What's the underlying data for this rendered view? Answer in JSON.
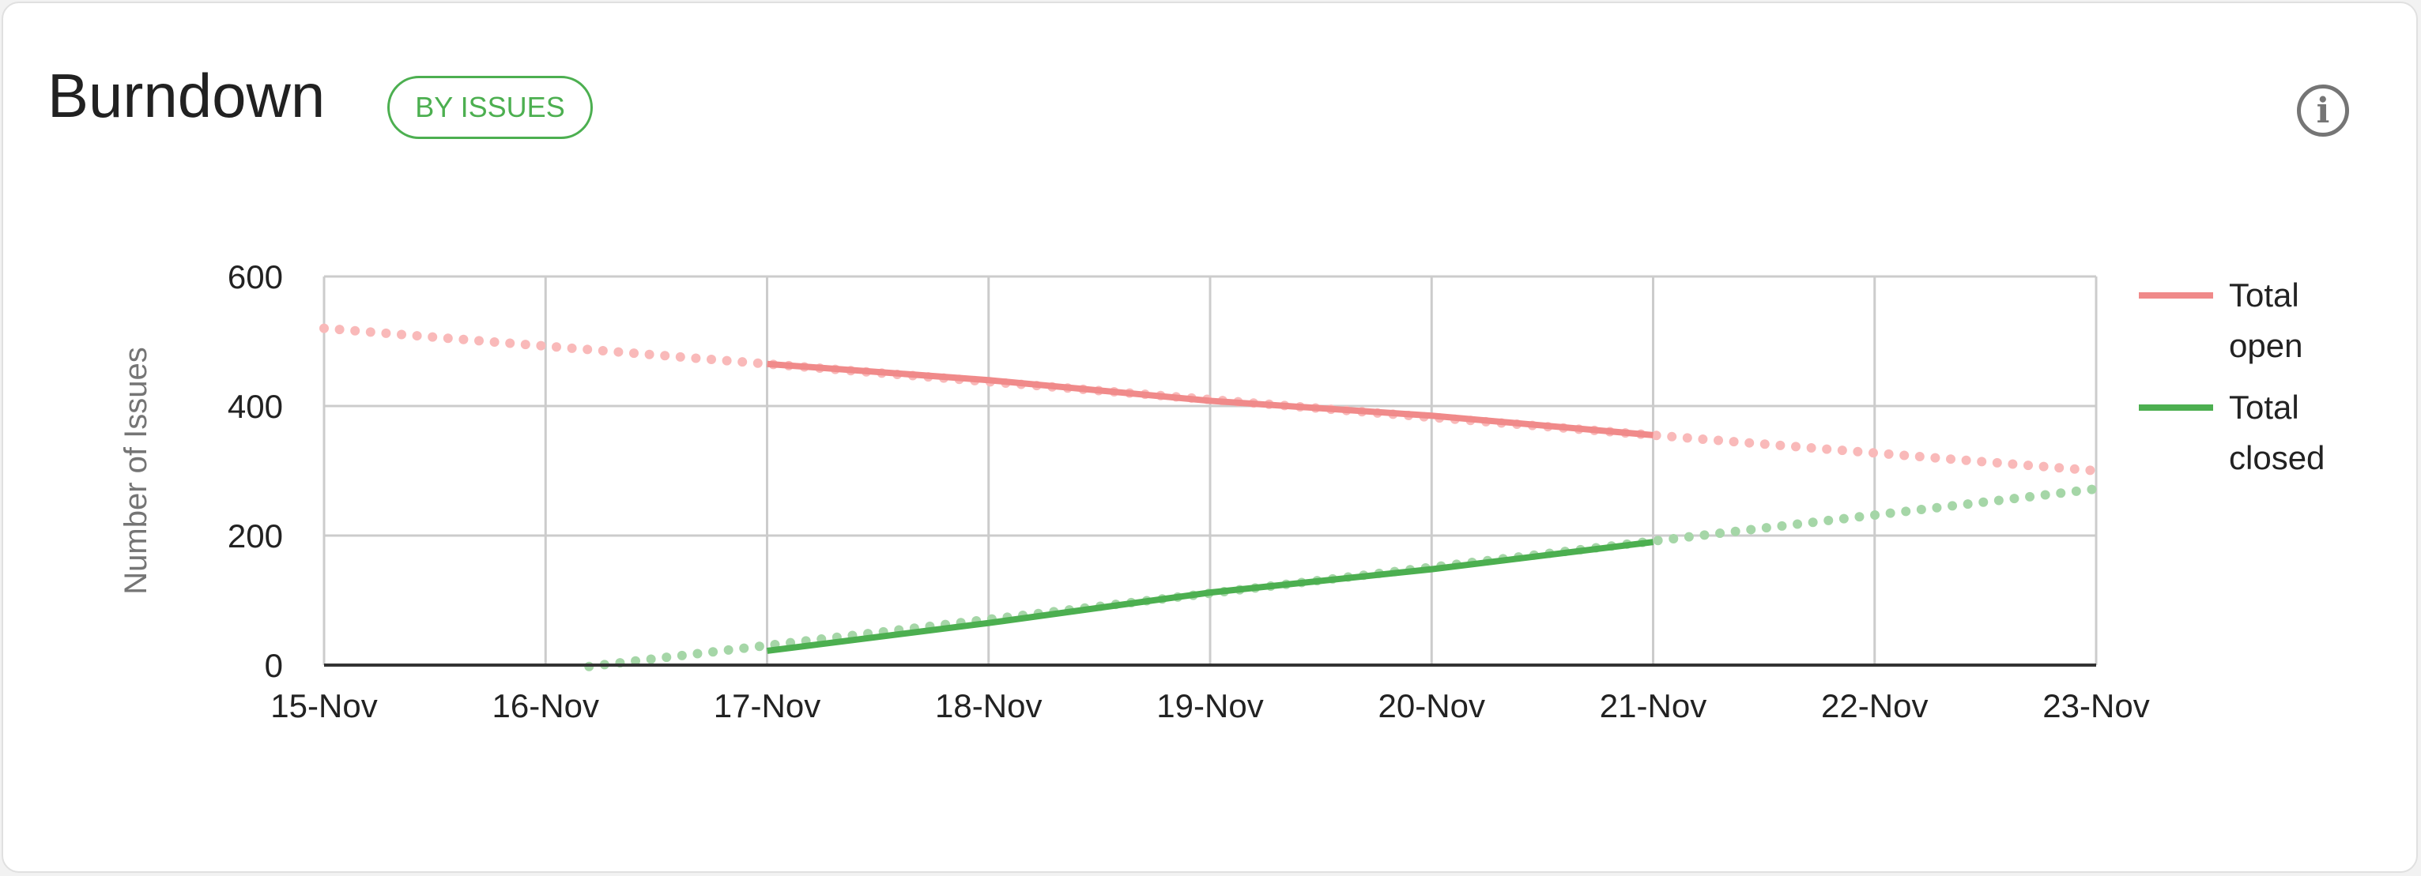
{
  "header": {
    "title": "Burndown",
    "badge": "BY ISSUES",
    "info_icon": "info-icon"
  },
  "colors": {
    "open": "#f08a8a",
    "open_trend": "#f9b9b9",
    "closed": "#4caf50",
    "closed_trend": "#a5d6a7",
    "badge": "#4caf50"
  },
  "chart_data": {
    "type": "line",
    "title": "",
    "xlabel": "",
    "ylabel": "Number of Issues",
    "categories": [
      "15-Nov",
      "16-Nov",
      "17-Nov",
      "18-Nov",
      "19-Nov",
      "20-Nov",
      "21-Nov",
      "22-Nov",
      "23-Nov"
    ],
    "yticks": [
      "0",
      "200",
      "400",
      "600"
    ],
    "ylim": [
      0,
      600
    ],
    "grid": true,
    "legend": "right",
    "series": [
      {
        "name": "Total open",
        "color": "#f08a8a",
        "points": [
          [
            "17-Nov",
            465
          ],
          [
            "18-Nov",
            440
          ],
          [
            "19-Nov",
            408
          ],
          [
            "20-Nov",
            385
          ],
          [
            "21-Nov",
            355
          ]
        ],
        "trend": [
          [
            "15-Nov",
            520
          ],
          [
            "23-Nov",
            300
          ]
        ]
      },
      {
        "name": "Total closed",
        "color": "#4caf50",
        "points": [
          [
            "17-Nov",
            22
          ],
          [
            "18-Nov",
            65
          ],
          [
            "19-Nov",
            112
          ],
          [
            "20-Nov",
            148
          ],
          [
            "21-Nov",
            190
          ]
        ],
        "trend": [
          [
            "16-Nov",
            -10
          ],
          [
            "23-Nov",
            272
          ]
        ]
      }
    ],
    "legend_lines": [
      [
        "Total",
        "open"
      ],
      [
        "Total",
        "closed"
      ]
    ]
  }
}
